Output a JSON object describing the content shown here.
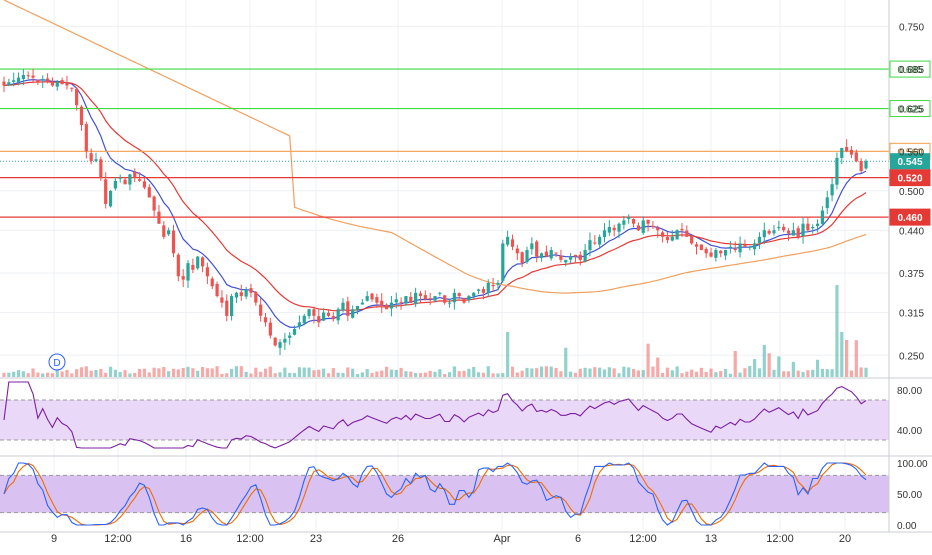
{
  "colors": {
    "up": "#26a69a",
    "down": "#ef5350",
    "ema_fast": "#3f51d8",
    "ema_mid": "#e53935",
    "ema_slow": "#f0a060",
    "green_level": "#3fdc3f",
    "red_level": "#e53935",
    "orange_level": "#f5a04a",
    "last_price": "#26a69a",
    "rsi": "#7b1fa2",
    "rsi_band": "#e9d8f7",
    "stoch_k": "#2962ff",
    "stoch_d": "#ef6c00",
    "stoch_band": "#d9c2f2",
    "grid": "#eef0f3",
    "axis_text": "#333333"
  },
  "chart_data": {
    "type": "candlestick",
    "price_axis": {
      "ylim": [
        0.217,
        0.79
      ],
      "ticks": [
        0.75,
        0.685,
        0.625,
        0.56,
        0.5,
        0.44,
        0.375,
        0.315,
        0.25
      ],
      "tick_labels": [
        "0.750",
        "0.685",
        "0.625",
        "0.560",
        "0.500",
        "0.440",
        "0.375",
        "0.315",
        "0.250"
      ]
    },
    "x_axis": {
      "tick_labels": [
        "9",
        "12:00",
        "16",
        "12:00",
        "23",
        "26",
        "Apr",
        "6",
        "12:00",
        "13",
        "12:00",
        "20"
      ]
    },
    "horizontal_levels": [
      {
        "price": 0.685,
        "color": "green",
        "label": "0.685"
      },
      {
        "price": 0.625,
        "color": "green",
        "label": "0.625"
      },
      {
        "price": 0.56,
        "color": "orange",
        "label": "0.560"
      },
      {
        "price": 0.52,
        "color": "red",
        "label": "0.520"
      },
      {
        "price": 0.46,
        "color": "red",
        "label": "0.460"
      }
    ],
    "last_price": {
      "value": 0.545,
      "label": "0.545"
    },
    "marker": "D",
    "closes": [
      0.66,
      0.665,
      0.668,
      0.672,
      0.676,
      0.675,
      0.672,
      0.665,
      0.67,
      0.665,
      0.66,
      0.666,
      0.662,
      0.66,
      0.655,
      0.63,
      0.6,
      0.56,
      0.545,
      0.548,
      0.52,
      0.48,
      0.5,
      0.515,
      0.52,
      0.51,
      0.525,
      0.52,
      0.515,
      0.505,
      0.49,
      0.47,
      0.45,
      0.43,
      0.44,
      0.405,
      0.37,
      0.365,
      0.39,
      0.38,
      0.4,
      0.385,
      0.37,
      0.355,
      0.34,
      0.33,
      0.31,
      0.34,
      0.345,
      0.34,
      0.35,
      0.345,
      0.33,
      0.31,
      0.3,
      0.28,
      0.265,
      0.27,
      0.275,
      0.28,
      0.29,
      0.3,
      0.31,
      0.32,
      0.31,
      0.3,
      0.315,
      0.31,
      0.305,
      0.32,
      0.33,
      0.31,
      0.32,
      0.325,
      0.33,
      0.34,
      0.335,
      0.33,
      0.325,
      0.32,
      0.33,
      0.335,
      0.33,
      0.34,
      0.33,
      0.345,
      0.34,
      0.335,
      0.335,
      0.34,
      0.345,
      0.33,
      0.33,
      0.345,
      0.34,
      0.33,
      0.34,
      0.345,
      0.35,
      0.345,
      0.36,
      0.355,
      0.36,
      0.42,
      0.43,
      0.415,
      0.405,
      0.39,
      0.41,
      0.42,
      0.4,
      0.405,
      0.4,
      0.41,
      0.405,
      0.395,
      0.395,
      0.4,
      0.4,
      0.395,
      0.41,
      0.425,
      0.42,
      0.43,
      0.44,
      0.445,
      0.44,
      0.45,
      0.455,
      0.46,
      0.45,
      0.44,
      0.455,
      0.45,
      0.445,
      0.44,
      0.43,
      0.425,
      0.43,
      0.44,
      0.44,
      0.43,
      0.42,
      0.415,
      0.41,
      0.405,
      0.4,
      0.41,
      0.405,
      0.41,
      0.415,
      0.41,
      0.42,
      0.415,
      0.415,
      0.42,
      0.43,
      0.44,
      0.435,
      0.44,
      0.445,
      0.44,
      0.435,
      0.44,
      0.43,
      0.45,
      0.44,
      0.445,
      0.45,
      0.47,
      0.49,
      0.51,
      0.55,
      0.565,
      0.56,
      0.555,
      0.545,
      0.53,
      0.545
    ],
    "volume_axis_note": "overlay on price pane",
    "rsi": {
      "ticks": [
        80,
        40
      ],
      "tick_labels": [
        "80.00",
        "40.00"
      ],
      "band": [
        30,
        70
      ],
      "ylim": [
        15,
        90
      ]
    },
    "stoch": {
      "ticks": [
        100,
        50,
        0
      ],
      "tick_labels": [
        "100.00",
        "50.00",
        "0.00"
      ],
      "band": [
        20,
        80
      ],
      "ylim": [
        -8,
        108
      ]
    }
  }
}
